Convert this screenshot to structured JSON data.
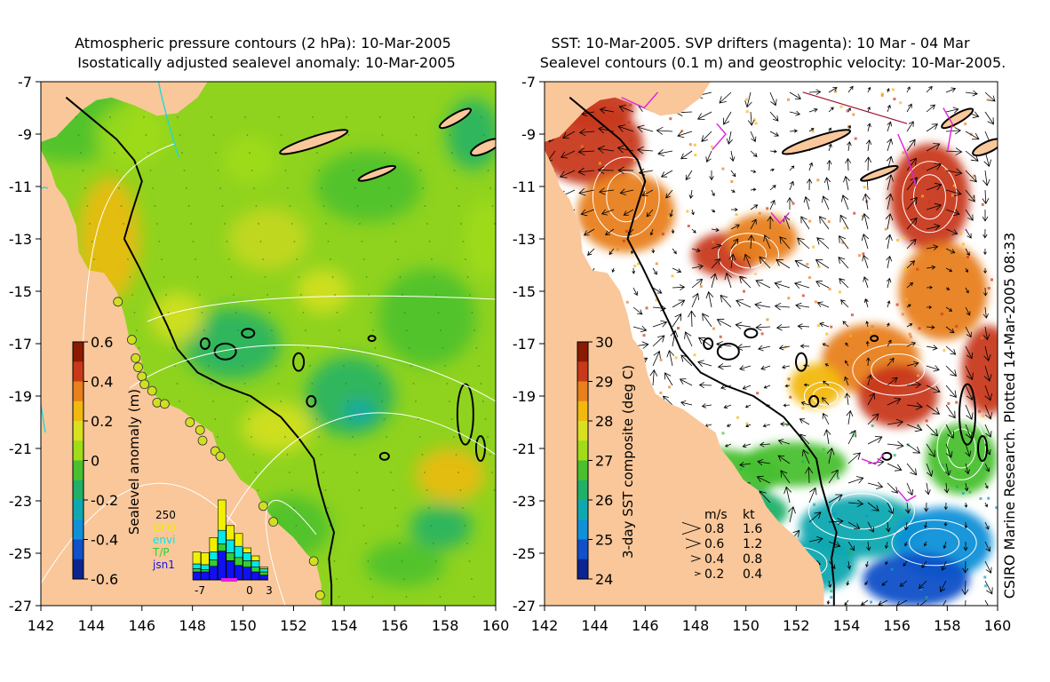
{
  "left_panel": {
    "title_line1": "Atmospheric pressure contours (2 hPa): 10-Mar-2005",
    "title_line2": "Isostatically adjusted sealevel anomaly: 10-Mar-2005",
    "colorbar": {
      "label": "Sealevel anomaly (m)",
      "ticks": [
        "0.6",
        "0.4",
        "0.2",
        "0",
        "-0.2",
        "-0.4",
        "-0.6"
      ],
      "colors": [
        "#8b1a00",
        "#c8381a",
        "#e8801c",
        "#f2b810",
        "#d8e020",
        "#a0dc18",
        "#48c030",
        "#20b068",
        "#10a8b0",
        "#1090d8",
        "#1050c8",
        "#0c2490"
      ]
    },
    "histogram": {
      "ymax_label": "250",
      "xticks": [
        "-7",
        "0",
        "3"
      ],
      "legend": [
        {
          "label": "GFO",
          "color": "#f0f000"
        },
        {
          "label": "envi",
          "color": "#00e8e8"
        },
        {
          "label": "T/P",
          "color": "#30d030"
        },
        {
          "label": "jsn1",
          "color": "#1010f0"
        }
      ],
      "bars": [
        {
          "jsn1": 0.1,
          "tp": 0.14,
          "envi": 0.2,
          "gfo": 0.35
        },
        {
          "jsn1": 0.1,
          "tp": 0.13,
          "envi": 0.19,
          "gfo": 0.34
        },
        {
          "jsn1": 0.17,
          "tp": 0.25,
          "envi": 0.35,
          "gfo": 0.53
        },
        {
          "jsn1": 0.36,
          "tp": 0.45,
          "envi": 0.62,
          "gfo": 1.0
        },
        {
          "jsn1": 0.24,
          "tp": 0.34,
          "envi": 0.5,
          "gfo": 0.68
        },
        {
          "jsn1": 0.18,
          "tp": 0.28,
          "envi": 0.42,
          "gfo": 0.58
        },
        {
          "jsn1": 0.16,
          "tp": 0.24,
          "envi": 0.34,
          "gfo": 0.4
        },
        {
          "jsn1": 0.1,
          "tp": 0.16,
          "envi": 0.24,
          "gfo": 0.3
        },
        {
          "jsn1": 0.06,
          "tp": 0.1,
          "envi": 0.14,
          "gfo": 0.16
        }
      ]
    }
  },
  "right_panel": {
    "title_line1": "SST: 10-Mar-2005. SVP drifters (magenta): 10 Mar - 04 Mar",
    "title_line2": "Sealevel contours (0.1 m) and geostrophic velocity: 10-Mar-2005.",
    "colorbar": {
      "label": "3-day SST composite (deg C)",
      "ticks": [
        "30",
        "29",
        "28",
        "27",
        "26",
        "25",
        "24"
      ],
      "colors": [
        "#8b1a00",
        "#c8381a",
        "#e8801c",
        "#f2b810",
        "#d8e020",
        "#a0dc18",
        "#48c030",
        "#20b068",
        "#10a8b0",
        "#1090d8",
        "#1050c8",
        "#0c2490"
      ]
    },
    "velocity_key": {
      "header_ms": "m/s",
      "header_kt": "kt",
      "rows": [
        {
          "ms": "0.8",
          "kt": "1.6"
        },
        {
          "ms": "0.6",
          "kt": "1.2"
        },
        {
          "ms": "0.4",
          "kt": "0.8"
        },
        {
          "ms": "0.2",
          "kt": "0.4"
        }
      ]
    },
    "credit": "CSIRO Marine Research. Plotted 14-Mar-2005 08:33"
  },
  "axes": {
    "y_ticks": [
      "-7",
      "-9",
      "-11",
      "-13",
      "-15",
      "-17",
      "-19",
      "-21",
      "-23",
      "-25",
      "-27"
    ],
    "x_ticks": [
      "142",
      "144",
      "146",
      "148",
      "150",
      "152",
      "154",
      "156",
      "158",
      "160"
    ],
    "xlim": [
      142,
      160
    ],
    "ylim": [
      -27,
      -7
    ]
  },
  "colors": {
    "land": "#f9c79a",
    "sea_green": "#8fd31f",
    "sea_dark_green": "#4cc02c",
    "sst_white": "#ffffff",
    "coast": "#000000"
  },
  "chart_data": [
    {
      "type": "heatmap",
      "title": "Atmospheric pressure contours (2 hPa): 10-Mar-2005 / Isostatically adjusted sealevel anomaly: 10-Mar-2005",
      "xlabel": "",
      "ylabel": "",
      "xlim": [
        142,
        160
      ],
      "ylim": [
        -27,
        -7
      ],
      "colorbar_label": "Sealevel anomaly (m)",
      "colorbar_range": [
        -0.6,
        0.6
      ]
    },
    {
      "type": "heatmap",
      "title": "SST: 10-Mar-2005. SVP drifters (magenta): 10 Mar - 04 Mar / Sealevel contours (0.1 m) and geostrophic velocity: 10-Mar-2005.",
      "xlabel": "",
      "ylabel": "",
      "xlim": [
        142,
        160
      ],
      "ylim": [
        -27,
        -7
      ],
      "colorbar_label": "3-day SST composite (deg C)",
      "colorbar_range": [
        24,
        30
      ]
    }
  ]
}
